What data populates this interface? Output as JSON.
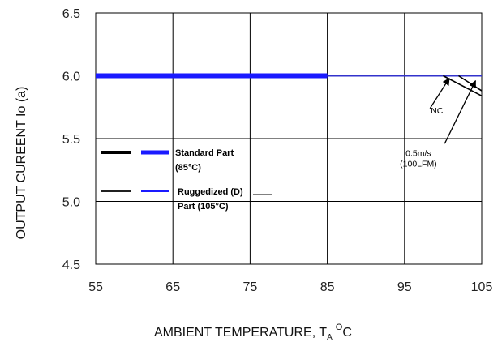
{
  "chart_data": {
    "type": "line",
    "xlabel": {
      "main": "AMBIENT TEMPERATURE, T",
      "sub": "A",
      "sup": "O",
      "unit": "C"
    },
    "ylabel": "OUTPUT CUREENT Io (a)",
    "xlim": [
      55,
      105
    ],
    "ylim": [
      4.5,
      6.5
    ],
    "xticks": [
      55,
      65,
      75,
      85,
      95,
      105
    ],
    "yticks": [
      4.5,
      5.0,
      5.5,
      6.0,
      6.5
    ],
    "ytick_labels": [
      "4.5",
      "5.0",
      "5.5",
      "6.0",
      "6.5"
    ],
    "grid": true,
    "series": [
      {
        "name": "NC",
        "style": "black-thick",
        "color": "#000000",
        "x": [
          55,
          85
        ],
        "y": [
          6.0,
          6.0
        ]
      },
      {
        "name": "Standard Part (85°C)",
        "style": "blue-thick",
        "color": "#1a1aff",
        "x": [
          55,
          85
        ],
        "y": [
          6.0,
          6.0
        ]
      },
      {
        "name": "Ruggedized (D) Part (105°C)",
        "style": "blue-thin",
        "color": "#3333cc",
        "x": [
          85,
          105
        ],
        "y": [
          6.0,
          6.0
        ]
      },
      {
        "name": "NC",
        "style": "black-thin",
        "color": "#000000",
        "x": [
          100,
          105
        ],
        "y": [
          6.0,
          5.84
        ]
      },
      {
        "name": "0.5m/s (100LFM)",
        "style": "black-thin",
        "color": "#000000",
        "x": [
          102,
          105
        ],
        "y": [
          6.0,
          5.88
        ]
      }
    ],
    "legend": [
      {
        "label_lines": [
          "Standard Part",
          "(85°C)"
        ],
        "style": "thick"
      },
      {
        "label_lines": [
          "Ruggedized (D)",
          "Part (105°C)"
        ],
        "style": "thin"
      }
    ],
    "annotations": [
      {
        "text_lines": [
          "NC"
        ],
        "text_at": [
          99.2,
          5.7
        ],
        "arrow_from": [
          98.3,
          5.74
        ],
        "arrow_to": [
          100.8,
          5.98
        ]
      },
      {
        "text_lines": [
          "0.5m/s",
          "(100LFM)"
        ],
        "text_at": [
          96.8,
          5.36
        ],
        "arrow_from": [
          100.2,
          5.46
        ],
        "arrow_to": [
          104.2,
          5.96
        ]
      }
    ]
  }
}
